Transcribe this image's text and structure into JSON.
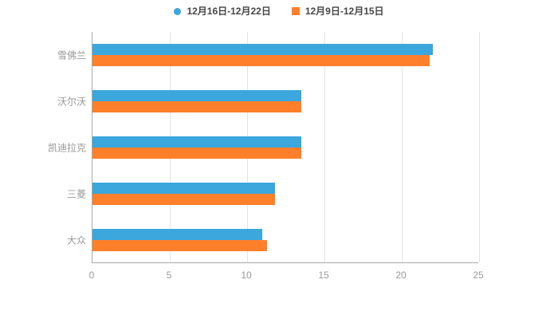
{
  "legend": {
    "items": [
      {
        "label": "12月16日-12月22日",
        "color": "#3BA7DC",
        "marker": "circle"
      },
      {
        "label": "12月9日-12月15日",
        "color": "#FF7F2A",
        "marker": "square"
      }
    ]
  },
  "chart_data": {
    "type": "bar",
    "orientation": "horizontal",
    "title": "",
    "categories": [
      "雪佛兰",
      "沃尔沃",
      "凯迪拉克",
      "三菱",
      "大众"
    ],
    "series": [
      {
        "name": "12月16日-12月22日",
        "color": "#3BA7DC",
        "values": [
          22,
          13.5,
          13.5,
          11.8,
          11
        ]
      },
      {
        "name": "12月9日-12月15日",
        "color": "#FF7F2A",
        "values": [
          21.8,
          13.5,
          13.5,
          11.8,
          11.3
        ]
      }
    ],
    "xlim": [
      0,
      25
    ],
    "xticks": [
      0,
      5,
      10,
      15,
      20,
      25
    ],
    "grid": true,
    "legend_position": "top",
    "colors": {
      "axis": "#aaaaaa",
      "gridline": "#e4e4e4",
      "tick_label": "#999999"
    }
  }
}
